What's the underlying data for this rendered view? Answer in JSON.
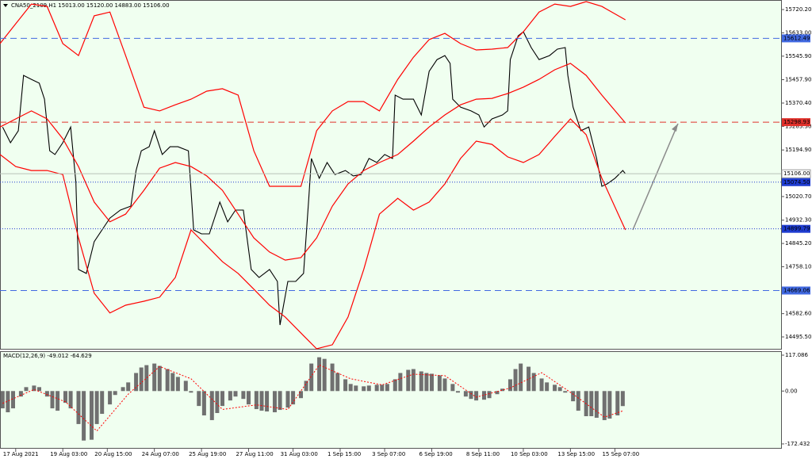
{
  "chart_data": [
    {
      "type": "line",
      "title": "CNA50_2109,H1  15013.00 15120.00 14883.00 15106.00",
      "xlim": [
        0,
        298.5
      ],
      "ylim": [
        14451,
        15756
      ],
      "yticks": [
        {
          "value": 15720.2,
          "label": "15720.20"
        },
        {
          "value": 15633,
          "label": "15633.00"
        },
        {
          "value": 15545.9,
          "label": "15545.90"
        },
        {
          "value": 15457.9,
          "label": "15457.90"
        },
        {
          "value": 15370.4,
          "label": "15370.40"
        },
        {
          "value": 15283.3,
          "label": "15283.30"
        },
        {
          "value": 15194.9,
          "label": "15194.90"
        },
        {
          "value": 15020.7,
          "label": "15020.70"
        },
        {
          "value": 14932.3,
          "label": "14932.30"
        },
        {
          "value": 14845.2,
          "label": "14845.20"
        },
        {
          "value": 14758.1,
          "label": "14758.10"
        },
        {
          "value": 14582.6,
          "label": "14582.60"
        },
        {
          "value": 14495.5,
          "label": "14495.50"
        }
      ],
      "xticks": [
        {
          "value": 6,
          "label": "17 Aug 2021"
        },
        {
          "value": 24,
          "label": "19 Aug 03:00"
        },
        {
          "value": 41,
          "label": "20 Aug 15:00"
        },
        {
          "value": 59,
          "label": "24 Aug 07:00"
        },
        {
          "value": 77,
          "label": "25 Aug 19:00"
        },
        {
          "value": 95,
          "label": "27 Aug 11:00"
        },
        {
          "value": 112,
          "label": "31 Aug 03:00"
        },
        {
          "value": 130,
          "label": "1 Sep 15:00"
        },
        {
          "value": 147,
          "label": "3 Sep 07:00"
        },
        {
          "value": 165,
          "label": "6 Sep 19:00"
        },
        {
          "value": 183,
          "label": "8 Sep 11:00"
        },
        {
          "value": 200,
          "label": "10 Sep 03:00"
        },
        {
          "value": 218,
          "label": "13 Sep 15:00"
        },
        {
          "value": 235,
          "label": "15 Sep 07:00"
        }
      ],
      "hlines": [
        {
          "value": 15612.49,
          "label": "15612.49",
          "color": "#4169e1",
          "style": "dash"
        },
        {
          "value": 15298.93,
          "label": "15298.93",
          "color": "#e0302a",
          "style": "dash"
        },
        {
          "value": 15106,
          "label": "15106.00",
          "color": "#b8c0b8",
          "style": "solid"
        },
        {
          "value": 15074.5,
          "label": "15074.50",
          "color": "#1e3cd0",
          "style": "dot"
        },
        {
          "value": 14899.79,
          "label": "14899.79",
          "color": "#1e3cd0",
          "style": "dot"
        },
        {
          "value": 14669.06,
          "label": "14669.06",
          "color": "#4169e1",
          "style": "dash"
        }
      ],
      "series": [
        {
          "color": "#000000",
          "x": [
            1,
            4,
            7,
            9,
            12,
            15,
            17,
            19,
            21,
            24,
            27,
            29,
            30,
            33,
            36,
            39,
            42,
            46,
            50,
            52,
            54,
            57,
            59,
            62,
            65,
            68,
            72,
            74,
            77,
            80,
            84,
            87,
            90,
            93,
            96,
            99,
            103,
            106,
            107,
            110,
            113,
            116,
            118,
            119,
            122,
            125,
            128,
            132,
            135,
            138,
            141,
            144,
            147,
            150,
            151,
            154,
            158,
            161,
            164,
            167,
            170,
            172,
            173,
            176,
            180,
            183,
            185,
            188,
            192,
            194,
            195,
            198,
            200,
            203,
            206,
            210,
            213,
            216,
            217,
            219,
            222,
            225,
            228,
            230,
            232,
            235,
            238,
            239
          ],
          "values": [
            15281,
            15222,
            15267,
            15474,
            15459,
            15445,
            15385,
            15192,
            15178,
            15222,
            15281,
            15074,
            14748,
            14733,
            14852,
            14896,
            14940,
            14970,
            14985,
            15118,
            15192,
            15207,
            15267,
            15178,
            15207,
            15207,
            15192,
            14896,
            14881,
            14881,
            15000,
            14926,
            14970,
            14970,
            14748,
            14718,
            14748,
            14703,
            14540,
            14703,
            14703,
            14733,
            15014,
            15163,
            15089,
            15148,
            15103,
            15118,
            15098,
            15103,
            15163,
            15148,
            15178,
            15163,
            15400,
            15385,
            15385,
            15326,
            15489,
            15533,
            15548,
            15519,
            15385,
            15355,
            15341,
            15326,
            15281,
            15311,
            15326,
            15341,
            15533,
            15622,
            15637,
            15578,
            15533,
            15548,
            15572,
            15578,
            15474,
            15355,
            15267,
            15281,
            15163,
            15059,
            15068,
            15089,
            15118,
            15106
          ]
        },
        {
          "color": "#ff0000",
          "x": [
            0,
            6,
            12,
            18,
            24,
            30,
            36,
            42,
            48,
            55,
            61,
            67,
            73,
            79,
            85,
            91,
            97,
            103,
            109,
            115,
            121,
            127,
            133,
            139,
            145,
            152,
            158,
            164,
            170,
            176,
            182,
            188,
            194,
            200,
            206,
            212,
            218,
            224,
            230,
            239
          ],
          "values": [
            15593,
            15667,
            15741,
            15732,
            15593,
            15548,
            15697,
            15711,
            15548,
            15355,
            15341,
            15364,
            15385,
            15415,
            15424,
            15400,
            15192,
            15059,
            15059,
            15059,
            15267,
            15341,
            15376,
            15376,
            15341,
            15459,
            15542,
            15608,
            15631,
            15593,
            15569,
            15572,
            15578,
            15637,
            15711,
            15741,
            15732,
            15750,
            15732,
            15682
          ]
        },
        {
          "color": "#ff0000",
          "x": [
            0,
            6,
            12,
            18,
            24,
            30,
            36,
            42,
            48,
            55,
            61,
            67,
            73,
            79,
            85,
            91,
            97,
            103,
            109,
            115,
            121,
            127,
            133,
            139,
            145,
            152,
            158,
            164,
            170,
            176,
            182,
            188,
            194,
            200,
            206,
            212,
            218,
            224,
            230,
            239
          ],
          "values": [
            15281,
            15311,
            15341,
            15311,
            15237,
            15133,
            15000,
            14926,
            14955,
            15044,
            15127,
            15148,
            15133,
            15098,
            15044,
            14955,
            14866,
            14813,
            14783,
            14792,
            14866,
            14985,
            15068,
            15118,
            15148,
            15178,
            15228,
            15281,
            15326,
            15364,
            15385,
            15388,
            15406,
            15430,
            15459,
            15495,
            15519,
            15474,
            15400,
            15296
          ]
        },
        {
          "color": "#ff0000",
          "x": [
            0,
            6,
            12,
            18,
            24,
            30,
            36,
            42,
            48,
            55,
            61,
            67,
            73,
            79,
            85,
            91,
            97,
            103,
            109,
            115,
            121,
            127,
            133,
            139,
            145,
            152,
            158,
            164,
            170,
            176,
            182,
            188,
            194,
            200,
            206,
            212,
            218,
            224,
            230,
            239
          ],
          "values": [
            15178,
            15133,
            15118,
            15118,
            15103,
            14866,
            14659,
            14585,
            14614,
            14629,
            14644,
            14718,
            14896,
            14837,
            14777,
            14733,
            14674,
            14614,
            14570,
            14510,
            14451,
            14466,
            14570,
            14748,
            14955,
            15014,
            14970,
            15000,
            15068,
            15163,
            15228,
            15216,
            15169,
            15148,
            15178,
            15246,
            15311,
            15252,
            15089,
            14896
          ]
        }
      ]
    },
    {
      "type": "bar",
      "title": "MACD(12,26,9) -49.012 -64.629",
      "xlim": [
        0,
        298.5
      ],
      "ylim": [
        -188,
        130
      ],
      "yticks": [
        117.086,
        {
          "value": 0,
          "label": "0.00"
        },
        -172.432
      ],
      "color": "#707070",
      "x": [
        1,
        3,
        5,
        8,
        10,
        13,
        15,
        18,
        20,
        22,
        25,
        27,
        30,
        32,
        35,
        37,
        39,
        42,
        44,
        47,
        49,
        52,
        54,
        56,
        59,
        61,
        64,
        66,
        68,
        71,
        73,
        76,
        78,
        81,
        83,
        85,
        88,
        90,
        93,
        95,
        98,
        100,
        102,
        105,
        107,
        110,
        112,
        115,
        117,
        119,
        122,
        124,
        127,
        129,
        132,
        134,
        136,
        139,
        141,
        144,
        146,
        148,
        151,
        153,
        156,
        158,
        161,
        163,
        165,
        168,
        170,
        173,
        175,
        178,
        180,
        182,
        185,
        187,
        190,
        192,
        195,
        197,
        199,
        202,
        204,
        207,
        209,
        212,
        214,
        216,
        219,
        221,
        224,
        226,
        228,
        231,
        233,
        236,
        238
      ],
      "values": [
        -56.4,
        -69.2,
        -56.4,
        -17.9,
        12.8,
        17.9,
        12.8,
        -17.9,
        -56.4,
        -64.1,
        -38.4,
        -56.4,
        -107.6,
        -161.4,
        -158.8,
        -107.6,
        -74.3,
        -43.6,
        -12.8,
        12.8,
        28.2,
        58.9,
        76.9,
        84.5,
        89.7,
        82.0,
        71.7,
        58.9,
        46.1,
        33.3,
        -5.1,
        -48.7,
        -79.4,
        -94.8,
        -71.7,
        -48.7,
        -30.7,
        -17.9,
        -25.6,
        -43.6,
        -58.9,
        -64.1,
        -66.6,
        -69.2,
        -61.5,
        -53.8,
        -43.6,
        -23.1,
        33.3,
        89.7,
        110.2,
        105.0,
        89.7,
        58.9,
        38.4,
        23.1,
        17.9,
        15.4,
        17.9,
        20.5,
        20.5,
        23.1,
        38.4,
        58.9,
        69.2,
        71.7,
        64.1,
        58.9,
        56.4,
        51.2,
        41.0,
        23.1,
        -5.1,
        -17.9,
        -25.6,
        -30.7,
        -28.2,
        -23.1,
        -10.2,
        7.7,
        38.4,
        71.7,
        89.7,
        79.4,
        58.9,
        41.0,
        28.2,
        20.5,
        12.8,
        -5.1,
        -33.3,
        -64.1,
        -82.0,
        -82.0,
        -87.1,
        -94.8,
        -89.7,
        -79.4,
        -49.012
      ],
      "signal": {
        "color": "#ff0000",
        "x": [
          1,
          13,
          25,
          37,
          49,
          61,
          73,
          85,
          98,
          110,
          122,
          134,
          146,
          158,
          170,
          182,
          195,
          207,
          219,
          231,
          238
        ],
        "values": [
          -40,
          5,
          -35,
          -130,
          -10,
          80,
          40,
          -60,
          -45,
          -60,
          85,
          40,
          20,
          55,
          50,
          -20,
          10,
          60,
          -10,
          -85,
          -64.629
        ]
      }
    }
  ]
}
